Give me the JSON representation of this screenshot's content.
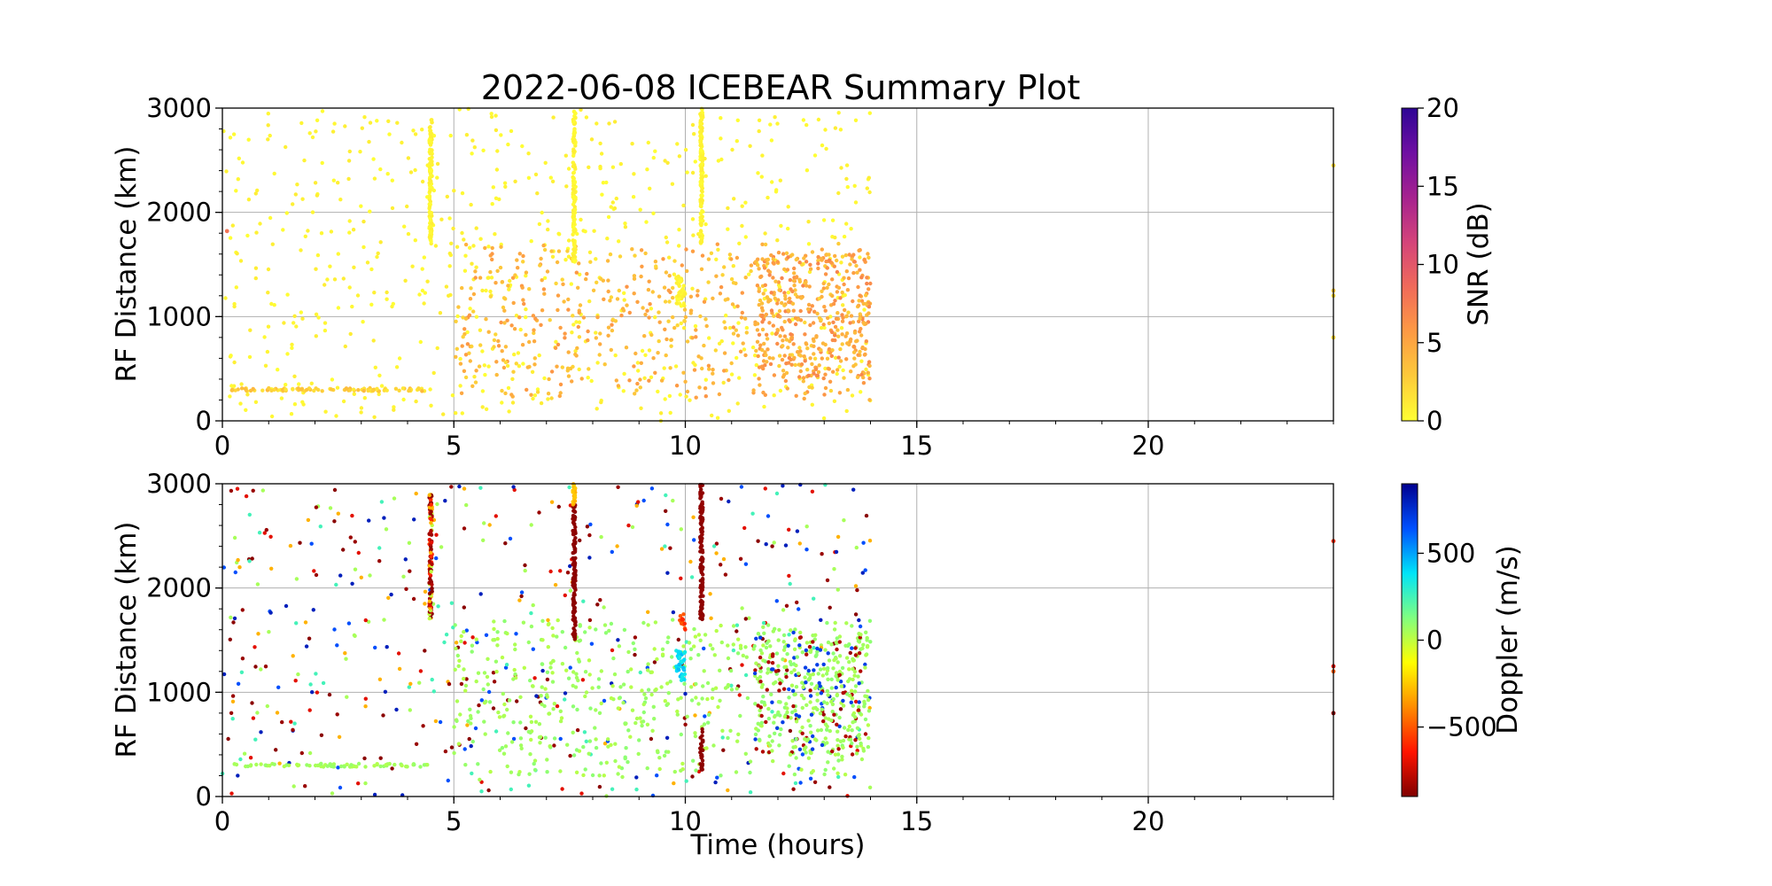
{
  "chart_data": {
    "title": "2022-06-08 ICEBEAR Summary Plot",
    "xlabel": "Time (hours)",
    "x_ticks": [
      0,
      5,
      10,
      15,
      20
    ],
    "x_minor_step": 1,
    "xlim": [
      0,
      24
    ],
    "panels": [
      {
        "type": "scatter",
        "name": "snr",
        "ylabel": "RF Distance (km)",
        "ylim": [
          0,
          3000
        ],
        "y_ticks": [
          0,
          1000,
          2000,
          3000
        ],
        "grid": true,
        "colorbar": {
          "label": "SNR (dB)",
          "range": [
            0,
            20
          ],
          "ticks": [
            0,
            5,
            10,
            15,
            20
          ],
          "tick_labels": [
            "0",
            "5",
            "10",
            "15",
            "20"
          ],
          "colormap": [
            "#ffff33",
            "#fdca3a",
            "#fd9a44",
            "#f06a5a",
            "#d4447a",
            "#a6228f",
            "#6f0fa2",
            "#2e0595"
          ]
        },
        "series": [
          {
            "kind": "scatter",
            "x_range": [
              0,
              14
            ],
            "y_range": [
              0,
              3000
            ],
            "count": 650,
            "z_range": [
              0,
              1
            ]
          },
          {
            "kind": "scatter",
            "x_range": [
              0.2,
              4.5
            ],
            "y_range": [
              285,
              315
            ],
            "count": 90,
            "z_range": [
              1,
              4
            ]
          },
          {
            "kind": "scatter",
            "x_range": [
              5,
              14
            ],
            "y_range": [
              200,
              1700
            ],
            "count": 500,
            "z_range": [
              2,
              6
            ]
          },
          {
            "kind": "scatter",
            "x_range": [
              11.5,
              14
            ],
            "y_range": [
              400,
              1600
            ],
            "count": 350,
            "z_range": [
              3,
              7
            ]
          },
          {
            "kind": "scatter",
            "x_range": [
              9.8,
              10.0
            ],
            "y_range": [
              1100,
              1400
            ],
            "count": 40,
            "z_range": [
              0,
              1
            ]
          },
          {
            "kind": "vertical_streak",
            "x": 4.5,
            "y_range": [
              1700,
              2900
            ],
            "count": 120,
            "z_range": [
              0,
              1
            ]
          },
          {
            "kind": "vertical_streak",
            "x": 7.6,
            "y_range": [
              1500,
              3000
            ],
            "count": 140,
            "z_range": [
              0,
              1
            ]
          },
          {
            "kind": "vertical_streak",
            "x": 10.35,
            "y_range": [
              1700,
              3000
            ],
            "count": 140,
            "z_range": [
              0,
              1
            ]
          },
          {
            "kind": "points",
            "x": [
              24,
              24,
              24,
              24,
              0.1
            ],
            "y": [
              2450,
              1250,
              1200,
              800,
              1820
            ],
            "z": [
              2,
              3,
              2,
              2,
              8
            ]
          }
        ]
      },
      {
        "type": "scatter",
        "name": "doppler",
        "ylabel": "RF Distance (km)",
        "ylim": [
          0,
          3000
        ],
        "y_ticks": [
          0,
          1000,
          2000,
          3000
        ],
        "grid": true,
        "colorbar": {
          "label": "Doppler (m/s)",
          "range": [
            -900,
            900
          ],
          "ticks": [
            -500,
            0,
            500
          ],
          "tick_labels": [
            "−500",
            "0",
            "500"
          ],
          "colormap": [
            "#800000",
            "#ff1400",
            "#ff8c00",
            "#ffff00",
            "#80ff80",
            "#00e4f8",
            "#0050ff",
            "#00008f"
          ]
        },
        "series": [
          {
            "kind": "scatter",
            "x_range": [
              0,
              14
            ],
            "y_range": [
              0,
              3000
            ],
            "count": 520,
            "z_set": [
              -880,
              -850,
              -700,
              650,
              800,
              250,
              -300,
              50
            ]
          },
          {
            "kind": "scatter",
            "x_range": [
              0.2,
              4.5
            ],
            "y_range": [
              285,
              315
            ],
            "count": 70,
            "z_set": [
              50,
              30,
              80
            ]
          },
          {
            "kind": "scatter",
            "x_range": [
              5,
              14
            ],
            "y_range": [
              200,
              1700
            ],
            "count": 500,
            "z_set": [
              40,
              60,
              80,
              20,
              100
            ]
          },
          {
            "kind": "scatter",
            "x_range": [
              11.5,
              14
            ],
            "y_range": [
              400,
              1600
            ],
            "count": 350,
            "z_set": [
              40,
              60,
              80,
              100,
              -800,
              700
            ]
          },
          {
            "kind": "scatter",
            "x_range": [
              9.8,
              10.0
            ],
            "y_range": [
              1100,
              1400
            ],
            "count": 40,
            "z_set": [
              350,
              400,
              450
            ]
          },
          {
            "kind": "scatter",
            "x_range": [
              9.85,
              10.0
            ],
            "y_range": [
              1600,
              1750
            ],
            "count": 14,
            "z_set": [
              -500,
              -600
            ]
          },
          {
            "kind": "vertical_streak",
            "x": 4.5,
            "y_range": [
              1700,
              2900
            ],
            "count": 120,
            "z_set": [
              -880,
              -850,
              -800,
              -700,
              -600,
              0,
              -300
            ]
          },
          {
            "kind": "vertical_streak",
            "x": 7.6,
            "y_range": [
              1500,
              2800
            ],
            "count": 130,
            "z_set": [
              -880,
              -870
            ]
          },
          {
            "kind": "vertical_streak",
            "x": 7.6,
            "y_range": [
              2800,
              3000
            ],
            "count": 20,
            "z_set": [
              -250,
              -300
            ]
          },
          {
            "kind": "vertical_streak",
            "x": 10.35,
            "y_range": [
              1700,
              3000
            ],
            "count": 140,
            "z_set": [
              -880,
              -870,
              -860
            ]
          },
          {
            "kind": "vertical_streak",
            "x": 10.35,
            "y_range": [
              250,
              650
            ],
            "count": 30,
            "z_set": [
              -880,
              -870
            ]
          },
          {
            "kind": "points",
            "x": [
              24,
              24,
              24,
              24
            ],
            "y": [
              2450,
              1250,
              1200,
              800
            ],
            "z": [
              -600,
              -700,
              -500,
              -880
            ]
          }
        ]
      }
    ]
  }
}
